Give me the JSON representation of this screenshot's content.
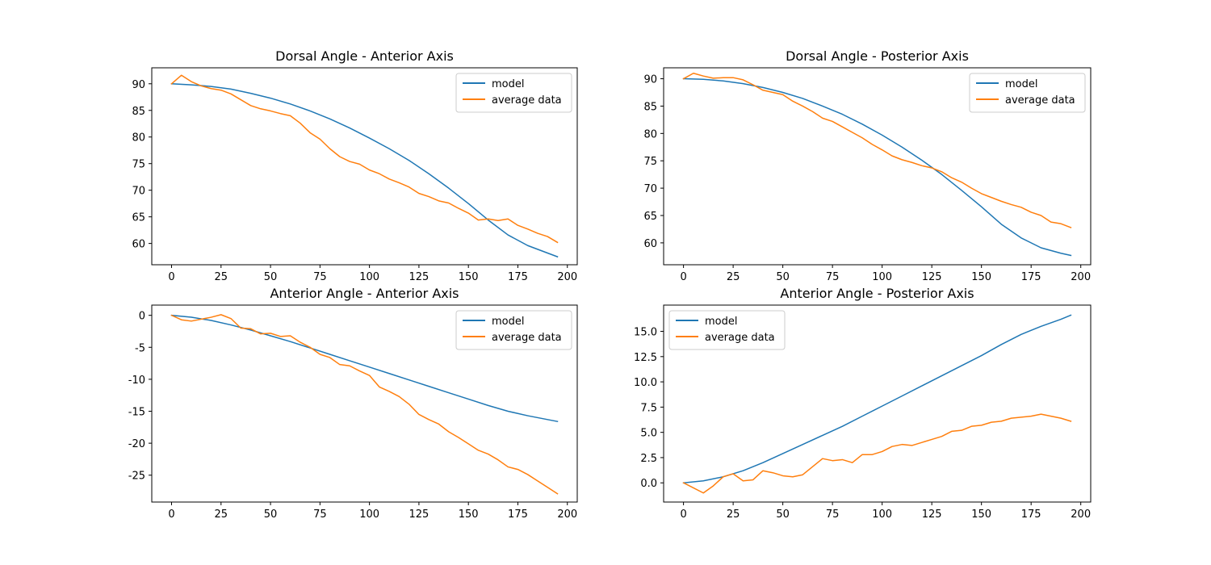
{
  "colors": {
    "model": "#1f77b4",
    "average_data": "#ff7f0e"
  },
  "chart_data": [
    {
      "type": "line",
      "title": "Dorsal Angle - Anterior Axis",
      "xlabel": "",
      "ylabel": "",
      "xlim": [
        -10,
        205
      ],
      "ylim": [
        56,
        93
      ],
      "xticks": [
        0,
        25,
        50,
        75,
        100,
        125,
        150,
        175,
        200
      ],
      "yticks": [
        60,
        65,
        70,
        75,
        80,
        85,
        90
      ],
      "legend": {
        "position": "top-right",
        "entries": [
          "model",
          "average data"
        ]
      },
      "series": [
        {
          "name": "model",
          "color": "#1f77b4",
          "x": [
            0,
            10,
            20,
            30,
            40,
            50,
            60,
            70,
            80,
            90,
            100,
            110,
            120,
            130,
            140,
            150,
            160,
            170,
            180,
            190,
            195
          ],
          "y": [
            90,
            89.8,
            89.5,
            89,
            88.2,
            87.3,
            86.2,
            84.9,
            83.4,
            81.7,
            79.8,
            77.8,
            75.6,
            73.1,
            70.4,
            67.5,
            64.4,
            61.6,
            59.6,
            58.2,
            57.5
          ]
        },
        {
          "name": "average data",
          "color": "#ff7f0e",
          "x": [
            0,
            5,
            10,
            15,
            20,
            25,
            30,
            35,
            40,
            45,
            50,
            55,
            60,
            65,
            70,
            75,
            80,
            85,
            90,
            95,
            100,
            105,
            110,
            115,
            120,
            125,
            130,
            135,
            140,
            145,
            150,
            155,
            160,
            165,
            170,
            175,
            180,
            185,
            190,
            195
          ],
          "y": [
            90,
            91.6,
            90.4,
            89.6,
            89.1,
            88.8,
            88.1,
            87,
            85.9,
            85.3,
            84.9,
            84.4,
            84,
            82.6,
            80.8,
            79.6,
            77.8,
            76.3,
            75.4,
            74.9,
            73.8,
            73.1,
            72.1,
            71.4,
            70.6,
            69.4,
            68.8,
            68,
            67.6,
            66.6,
            65.7,
            64.4,
            64.6,
            64.3,
            64.6,
            63.4,
            62.7,
            61.9,
            61.3,
            60.2
          ]
        }
      ]
    },
    {
      "type": "line",
      "title": "Dorsal Angle - Posterior Axis",
      "xlabel": "",
      "ylabel": "",
      "xlim": [
        -10,
        205
      ],
      "ylim": [
        56,
        92
      ],
      "xticks": [
        0,
        25,
        50,
        75,
        100,
        125,
        150,
        175,
        200
      ],
      "yticks": [
        60,
        65,
        70,
        75,
        80,
        85,
        90
      ],
      "legend": {
        "position": "top-right",
        "entries": [
          "model",
          "average data"
        ]
      },
      "series": [
        {
          "name": "model",
          "color": "#1f77b4",
          "x": [
            0,
            10,
            20,
            30,
            40,
            50,
            60,
            70,
            80,
            90,
            100,
            110,
            120,
            130,
            140,
            150,
            160,
            170,
            180,
            190,
            195
          ],
          "y": [
            90,
            89.9,
            89.6,
            89.1,
            88.4,
            87.5,
            86.4,
            85,
            83.5,
            81.7,
            79.7,
            77.5,
            75.1,
            72.5,
            69.6,
            66.6,
            63.4,
            60.9,
            59.1,
            58.1,
            57.7
          ]
        },
        {
          "name": "average data",
          "color": "#ff7f0e",
          "x": [
            0,
            5,
            10,
            15,
            20,
            25,
            30,
            35,
            40,
            45,
            50,
            55,
            60,
            65,
            70,
            75,
            80,
            85,
            90,
            95,
            100,
            105,
            110,
            115,
            120,
            125,
            130,
            135,
            140,
            145,
            150,
            155,
            160,
            165,
            170,
            175,
            180,
            185,
            190,
            195
          ],
          "y": [
            90,
            91,
            90.5,
            90.1,
            90.2,
            90.2,
            89.8,
            88.9,
            87.9,
            87.5,
            87.1,
            85.9,
            85,
            84,
            82.8,
            82.2,
            81.2,
            80.2,
            79.2,
            78,
            77,
            75.9,
            75.2,
            74.7,
            74.1,
            73.7,
            73,
            71.9,
            71.1,
            70,
            69,
            68.3,
            67.6,
            67,
            66.5,
            65.6,
            65,
            63.8,
            63.5,
            62.8
          ]
        }
      ]
    },
    {
      "type": "line",
      "title": "Anterior Angle - Anterior Axis",
      "xlabel": "",
      "ylabel": "",
      "xlim": [
        -10,
        205
      ],
      "ylim": [
        -29.2,
        1.6
      ],
      "xticks": [
        0,
        25,
        50,
        75,
        100,
        125,
        150,
        175,
        200
      ],
      "yticks": [
        0,
        -5,
        -10,
        -15,
        -20,
        -25
      ],
      "legend": {
        "position": "top-right",
        "entries": [
          "model",
          "average data"
        ]
      },
      "series": [
        {
          "name": "model",
          "color": "#1f77b4",
          "x": [
            0,
            10,
            20,
            30,
            40,
            50,
            60,
            70,
            80,
            90,
            100,
            110,
            120,
            130,
            140,
            150,
            160,
            170,
            180,
            190,
            195
          ],
          "y": [
            0,
            -0.3,
            -0.8,
            -1.5,
            -2.3,
            -3.2,
            -4.1,
            -5.1,
            -6.1,
            -7.1,
            -8.1,
            -9.1,
            -10.1,
            -11.1,
            -12.1,
            -13.1,
            -14.1,
            -15,
            -15.7,
            -16.3,
            -16.6
          ]
        },
        {
          "name": "average data",
          "color": "#ff7f0e",
          "x": [
            0,
            5,
            10,
            15,
            20,
            25,
            30,
            35,
            40,
            45,
            50,
            55,
            60,
            65,
            70,
            75,
            80,
            85,
            90,
            95,
            100,
            105,
            110,
            115,
            120,
            125,
            130,
            135,
            140,
            145,
            150,
            155,
            160,
            165,
            170,
            175,
            180,
            185,
            190,
            195
          ],
          "y": [
            0,
            -0.7,
            -0.9,
            -0.6,
            -0.3,
            0.1,
            -0.5,
            -2,
            -2.1,
            -2.9,
            -2.8,
            -3.3,
            -3.2,
            -4.2,
            -5,
            -6.1,
            -6.6,
            -7.7,
            -7.9,
            -8.7,
            -9.4,
            -11.2,
            -11.9,
            -12.7,
            -13.9,
            -15.5,
            -16.3,
            -17,
            -18.2,
            -19.1,
            -20.1,
            -21.1,
            -21.7,
            -22.6,
            -23.7,
            -24.1,
            -24.9,
            -25.9,
            -26.9,
            -27.9
          ]
        }
      ]
    },
    {
      "type": "line",
      "title": "Anterior Angle - Posterior Axis",
      "xlabel": "",
      "ylabel": "",
      "xlim": [
        -10,
        205
      ],
      "ylim": [
        -1.9,
        17.6
      ],
      "xticks": [
        0,
        25,
        50,
        75,
        100,
        125,
        150,
        175,
        200
      ],
      "yticks": [
        0.0,
        2.5,
        5.0,
        7.5,
        10.0,
        12.5,
        15.0
      ],
      "ytick_labels": [
        "0.0",
        "2.5",
        "5.0",
        "7.5",
        "10.0",
        "12.5",
        "15.0"
      ],
      "legend": {
        "position": "top-left",
        "entries": [
          "model",
          "average data"
        ]
      },
      "series": [
        {
          "name": "model",
          "color": "#1f77b4",
          "x": [
            0,
            10,
            20,
            30,
            40,
            50,
            60,
            70,
            80,
            90,
            100,
            110,
            120,
            130,
            140,
            150,
            160,
            170,
            180,
            190,
            195
          ],
          "y": [
            0,
            0.2,
            0.6,
            1.2,
            2,
            2.9,
            3.8,
            4.7,
            5.6,
            6.6,
            7.6,
            8.6,
            9.6,
            10.6,
            11.6,
            12.6,
            13.7,
            14.7,
            15.5,
            16.2,
            16.6
          ]
        },
        {
          "name": "average data",
          "color": "#ff7f0e",
          "x": [
            0,
            5,
            10,
            15,
            20,
            25,
            30,
            35,
            40,
            45,
            50,
            55,
            60,
            65,
            70,
            75,
            80,
            85,
            90,
            95,
            100,
            105,
            110,
            115,
            120,
            125,
            130,
            135,
            140,
            145,
            150,
            155,
            160,
            165,
            170,
            175,
            180,
            185,
            190,
            195
          ],
          "y": [
            0,
            -0.5,
            -1,
            -0.3,
            0.6,
            0.9,
            0.2,
            0.3,
            1.2,
            1,
            0.7,
            0.6,
            0.8,
            1.6,
            2.4,
            2.2,
            2.3,
            2,
            2.8,
            2.8,
            3.1,
            3.6,
            3.8,
            3.7,
            4,
            4.3,
            4.6,
            5.1,
            5.2,
            5.6,
            5.7,
            6,
            6.1,
            6.4,
            6.5,
            6.6,
            6.8,
            6.6,
            6.4,
            6.1
          ]
        }
      ]
    }
  ]
}
